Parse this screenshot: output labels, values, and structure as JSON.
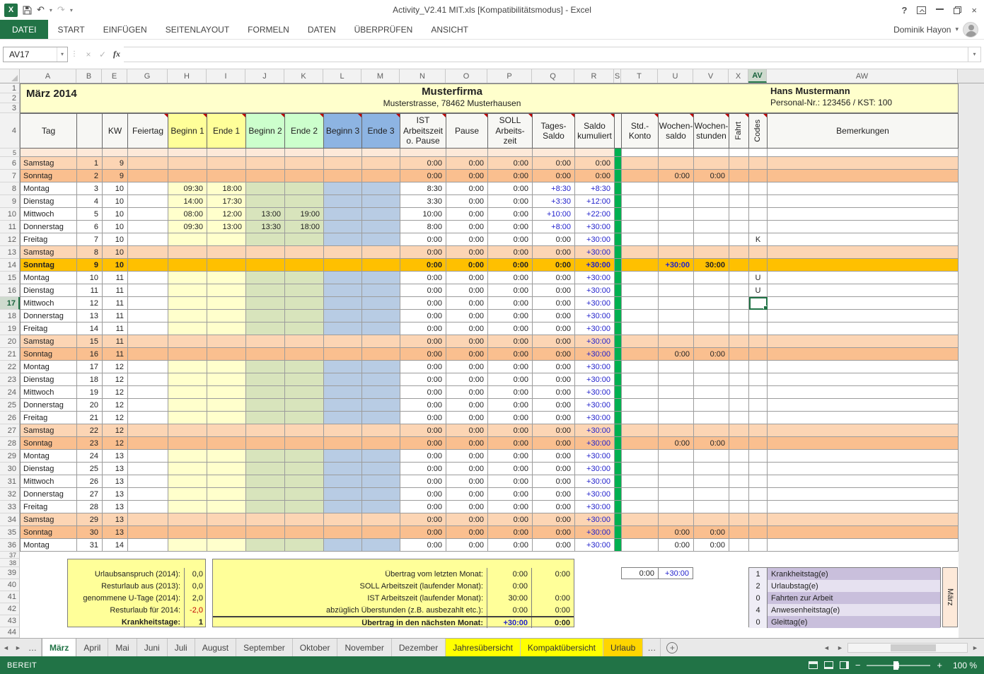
{
  "window": {
    "title": "Activity_V2.41 MIT.xls [Kompatibilitätsmodus] - Excel",
    "help_label": "?",
    "user": "Dominik Hayon"
  },
  "ribbon": {
    "file_tab": "DATEI",
    "tabs": [
      "START",
      "EINFÜGEN",
      "SEITENLAYOUT",
      "FORMELN",
      "DATEN",
      "ÜBERPRÜFEN",
      "ANSICHT"
    ]
  },
  "formula_bar": {
    "name_box": "AV17",
    "fx_label": "fx"
  },
  "sheet": {
    "column_letters": [
      "A",
      "B",
      "E",
      "G",
      "H",
      "I",
      "J",
      "K",
      "L",
      "M",
      "N",
      "O",
      "P",
      "Q",
      "R",
      "S",
      "T",
      "U",
      "V",
      "X",
      "AV",
      "AW"
    ],
    "selected_column": "AV",
    "selected_row": 17,
    "info": {
      "month_title": "März 2014",
      "company": "Musterfirma",
      "address": "Musterstrasse, 78462 Musterhausen",
      "employee": "Hans Mustermann",
      "employee_id": "Personal-Nr.: 123456 / KST: 100"
    },
    "header": [
      "Tag",
      "",
      "KW",
      "Feiertag",
      "Beginn 1",
      "Ende 1",
      "Beginn 2",
      "Ende 2",
      "Beginn 3",
      "Ende 3",
      "IST\nArbeitszeit\no. Pause",
      "Pause",
      "SOLL\nArbeits-\nzeit",
      "Tages-\nSaldo",
      "Saldo\nkumuliert",
      "",
      "Std.-\nKonto",
      "Wochen-\nsaldo",
      "Wochen-\nstunden",
      "Fahrt",
      "Codes",
      "Bemerkungen"
    ],
    "rows": [
      {
        "n": 6,
        "day": "Samstag",
        "date": "1",
        "kw": "9",
        "ist": "0:00",
        "pau": "0:00",
        "soll": "0:00",
        "ts": "0:00",
        "ks": "0:00",
        "type": "sat"
      },
      {
        "n": 7,
        "day": "Sonntag",
        "date": "2",
        "kw": "9",
        "ist": "0:00",
        "pau": "0:00",
        "soll": "0:00",
        "ts": "0:00",
        "ks": "0:00",
        "ws": "0:00",
        "wh": "0:00",
        "type": "sun"
      },
      {
        "n": 8,
        "day": "Montag",
        "date": "3",
        "kw": "10",
        "b1": "09:30",
        "e1": "18:00",
        "ist": "8:30",
        "pau": "0:00",
        "soll": "0:00",
        "ts": "+8:30",
        "ks": "+8:30",
        "type": "wd"
      },
      {
        "n": 9,
        "day": "Dienstag",
        "date": "4",
        "kw": "10",
        "b1": "14:00",
        "e1": "17:30",
        "ist": "3:30",
        "pau": "0:00",
        "soll": "0:00",
        "ts": "+3:30",
        "ks": "+12:00",
        "type": "wd"
      },
      {
        "n": 10,
        "day": "Mittwoch",
        "date": "5",
        "kw": "10",
        "b1": "08:00",
        "e1": "12:00",
        "b2": "13:00",
        "e2": "19:00",
        "ist": "10:00",
        "pau": "0:00",
        "soll": "0:00",
        "ts": "+10:00",
        "ks": "+22:00",
        "type": "wd"
      },
      {
        "n": 11,
        "day": "Donnerstag",
        "date": "6",
        "kw": "10",
        "b1": "09:30",
        "e1": "13:00",
        "b2": "13:30",
        "e2": "18:00",
        "ist": "8:00",
        "pau": "0:00",
        "soll": "0:00",
        "ts": "+8:00",
        "ks": "+30:00",
        "type": "wd"
      },
      {
        "n": 12,
        "day": "Freitag",
        "date": "7",
        "kw": "10",
        "ist": "0:00",
        "pau": "0:00",
        "soll": "0:00",
        "ts": "0:00",
        "ks": "+30:00",
        "code": "K",
        "type": "wd"
      },
      {
        "n": 13,
        "day": "Samstag",
        "date": "8",
        "kw": "10",
        "ist": "0:00",
        "pau": "0:00",
        "soll": "0:00",
        "ts": "0:00",
        "ks": "+30:00",
        "type": "sat"
      },
      {
        "n": 14,
        "day": "Sonntag",
        "date": "9",
        "kw": "10",
        "ist": "0:00",
        "pau": "0:00",
        "soll": "0:00",
        "ts": "0:00",
        "ks": "+30:00",
        "ws": "+30:00",
        "wh": "30:00",
        "type": "sunhl"
      },
      {
        "n": 15,
        "day": "Montag",
        "date": "10",
        "kw": "11",
        "ist": "0:00",
        "pau": "0:00",
        "soll": "0:00",
        "ts": "0:00",
        "ks": "+30:00",
        "code": "U",
        "type": "wd"
      },
      {
        "n": 16,
        "day": "Dienstag",
        "date": "11",
        "kw": "11",
        "ist": "0:00",
        "pau": "0:00",
        "soll": "0:00",
        "ts": "0:00",
        "ks": "+30:00",
        "code": "U",
        "type": "wd"
      },
      {
        "n": 17,
        "day": "Mittwoch",
        "date": "12",
        "kw": "11",
        "ist": "0:00",
        "pau": "0:00",
        "soll": "0:00",
        "ts": "0:00",
        "ks": "+30:00",
        "type": "wd"
      },
      {
        "n": 18,
        "day": "Donnerstag",
        "date": "13",
        "kw": "11",
        "ist": "0:00",
        "pau": "0:00",
        "soll": "0:00",
        "ts": "0:00",
        "ks": "+30:00",
        "type": "wd"
      },
      {
        "n": 19,
        "day": "Freitag",
        "date": "14",
        "kw": "11",
        "ist": "0:00",
        "pau": "0:00",
        "soll": "0:00",
        "ts": "0:00",
        "ks": "+30:00",
        "type": "wd"
      },
      {
        "n": 20,
        "day": "Samstag",
        "date": "15",
        "kw": "11",
        "ist": "0:00",
        "pau": "0:00",
        "soll": "0:00",
        "ts": "0:00",
        "ks": "+30:00",
        "type": "sat"
      },
      {
        "n": 21,
        "day": "Sonntag",
        "date": "16",
        "kw": "11",
        "ist": "0:00",
        "pau": "0:00",
        "soll": "0:00",
        "ts": "0:00",
        "ks": "+30:00",
        "ws": "0:00",
        "wh": "0:00",
        "type": "sun"
      },
      {
        "n": 22,
        "day": "Montag",
        "date": "17",
        "kw": "12",
        "ist": "0:00",
        "pau": "0:00",
        "soll": "0:00",
        "ts": "0:00",
        "ks": "+30:00",
        "type": "wd"
      },
      {
        "n": 23,
        "day": "Dienstag",
        "date": "18",
        "kw": "12",
        "ist": "0:00",
        "pau": "0:00",
        "soll": "0:00",
        "ts": "0:00",
        "ks": "+30:00",
        "type": "wd"
      },
      {
        "n": 24,
        "day": "Mittwoch",
        "date": "19",
        "kw": "12",
        "ist": "0:00",
        "pau": "0:00",
        "soll": "0:00",
        "ts": "0:00",
        "ks": "+30:00",
        "type": "wd"
      },
      {
        "n": 25,
        "day": "Donnerstag",
        "date": "20",
        "kw": "12",
        "ist": "0:00",
        "pau": "0:00",
        "soll": "0:00",
        "ts": "0:00",
        "ks": "+30:00",
        "type": "wd"
      },
      {
        "n": 26,
        "day": "Freitag",
        "date": "21",
        "kw": "12",
        "ist": "0:00",
        "pau": "0:00",
        "soll": "0:00",
        "ts": "0:00",
        "ks": "+30:00",
        "type": "wd"
      },
      {
        "n": 27,
        "day": "Samstag",
        "date": "22",
        "kw": "12",
        "ist": "0:00",
        "pau": "0:00",
        "soll": "0:00",
        "ts": "0:00",
        "ks": "+30:00",
        "type": "sat"
      },
      {
        "n": 28,
        "day": "Sonntag",
        "date": "23",
        "kw": "12",
        "ist": "0:00",
        "pau": "0:00",
        "soll": "0:00",
        "ts": "0:00",
        "ks": "+30:00",
        "ws": "0:00",
        "wh": "0:00",
        "type": "sun"
      },
      {
        "n": 29,
        "day": "Montag",
        "date": "24",
        "kw": "13",
        "ist": "0:00",
        "pau": "0:00",
        "soll": "0:00",
        "ts": "0:00",
        "ks": "+30:00",
        "type": "wd"
      },
      {
        "n": 30,
        "day": "Dienstag",
        "date": "25",
        "kw": "13",
        "ist": "0:00",
        "pau": "0:00",
        "soll": "0:00",
        "ts": "0:00",
        "ks": "+30:00",
        "type": "wd"
      },
      {
        "n": 31,
        "day": "Mittwoch",
        "date": "26",
        "kw": "13",
        "ist": "0:00",
        "pau": "0:00",
        "soll": "0:00",
        "ts": "0:00",
        "ks": "+30:00",
        "type": "wd"
      },
      {
        "n": 32,
        "day": "Donnerstag",
        "date": "27",
        "kw": "13",
        "ist": "0:00",
        "pau": "0:00",
        "soll": "0:00",
        "ts": "0:00",
        "ks": "+30:00",
        "type": "wd"
      },
      {
        "n": 33,
        "day": "Freitag",
        "date": "28",
        "kw": "13",
        "ist": "0:00",
        "pau": "0:00",
        "soll": "0:00",
        "ts": "0:00",
        "ks": "+30:00",
        "type": "wd"
      },
      {
        "n": 34,
        "day": "Samstag",
        "date": "29",
        "kw": "13",
        "ist": "0:00",
        "pau": "0:00",
        "soll": "0:00",
        "ts": "0:00",
        "ks": "+30:00",
        "type": "sat"
      },
      {
        "n": 35,
        "day": "Sonntag",
        "date": "30",
        "kw": "13",
        "ist": "0:00",
        "pau": "0:00",
        "soll": "0:00",
        "ts": "0:00",
        "ks": "+30:00",
        "ws": "0:00",
        "wh": "0:00",
        "type": "sun"
      },
      {
        "n": 36,
        "day": "Montag",
        "date": "31",
        "kw": "14",
        "ist": "0:00",
        "pau": "0:00",
        "soll": "0:00",
        "ts": "0:00",
        "ks": "+30:00",
        "ws": "0:00",
        "wh": "0:00",
        "type": "wd"
      }
    ]
  },
  "footer": {
    "left": [
      {
        "label": "Urlaubsanspruch (2014):",
        "value": "0,0"
      },
      {
        "label": "Resturlaub aus (2013):",
        "value": "0,0"
      },
      {
        "label": "genommene U-Tage (2014):",
        "value": "2,0"
      },
      {
        "label": "Resturlaub für 2014:",
        "value": "-2,0",
        "negative": true
      },
      {
        "label": "Krankheitstage:",
        "value": "1",
        "bold": true
      }
    ],
    "middle": [
      {
        "label": "Übertrag vom letzten Monat:",
        "v1": "0:00",
        "v2": "0:00"
      },
      {
        "label": "SOLL Arbeitszeit (laufender Monat):",
        "v1": "0:00",
        "v2": ""
      },
      {
        "label": "IST Arbeitszeit (laufender Monat):",
        "v1": "30:00",
        "v2": "0:00"
      },
      {
        "label": "abzüglich Überstunden (z.B. ausbezahlt etc.):",
        "v1": "0:00",
        "v2": "0:00"
      },
      {
        "label": "Übertrag in den nächsten Monat:",
        "v1": "+30:00",
        "v2": "0:00",
        "total": true
      }
    ],
    "carry_cells": {
      "v1": "0:00",
      "v2": "+30:00"
    },
    "legend": {
      "rows": [
        {
          "count": "1",
          "label": "Krankheitstag(e)"
        },
        {
          "count": "2",
          "label": "Urlaubstag(e)"
        },
        {
          "count": "0",
          "label": "Fahrten zur Arbeit"
        },
        {
          "count": "4",
          "label": "Anwesenheitstag(e)"
        },
        {
          "count": "0",
          "label": "Gleittag(e)"
        }
      ],
      "month_label": "März"
    }
  },
  "tabs_bar": {
    "overflow_left": "…",
    "overflow_right": "…",
    "sheets": [
      {
        "label": "März",
        "active": true
      },
      {
        "label": "April"
      },
      {
        "label": "Mai"
      },
      {
        "label": "Juni"
      },
      {
        "label": "Juli"
      },
      {
        "label": "August"
      },
      {
        "label": "September"
      },
      {
        "label": "Oktober"
      },
      {
        "label": "November"
      },
      {
        "label": "Dezember"
      },
      {
        "label": "Jahresübersicht",
        "color": "#FFFF00"
      },
      {
        "label": "Kompaktübersicht",
        "color": "#FFFF00"
      },
      {
        "label": "Urlaub",
        "color": "#FFD500"
      }
    ]
  },
  "status_bar": {
    "mode": "BEREIT",
    "zoom_level": "100 %"
  },
  "colors": {
    "accent": "#217346",
    "saturday_fill": "#FCD5B4",
    "sunday_fill": "#FABF8F",
    "week_summary_fill": "#FFC000",
    "hours_strip_fill": "#00B050",
    "positive_time_color": "#2222CC"
  }
}
